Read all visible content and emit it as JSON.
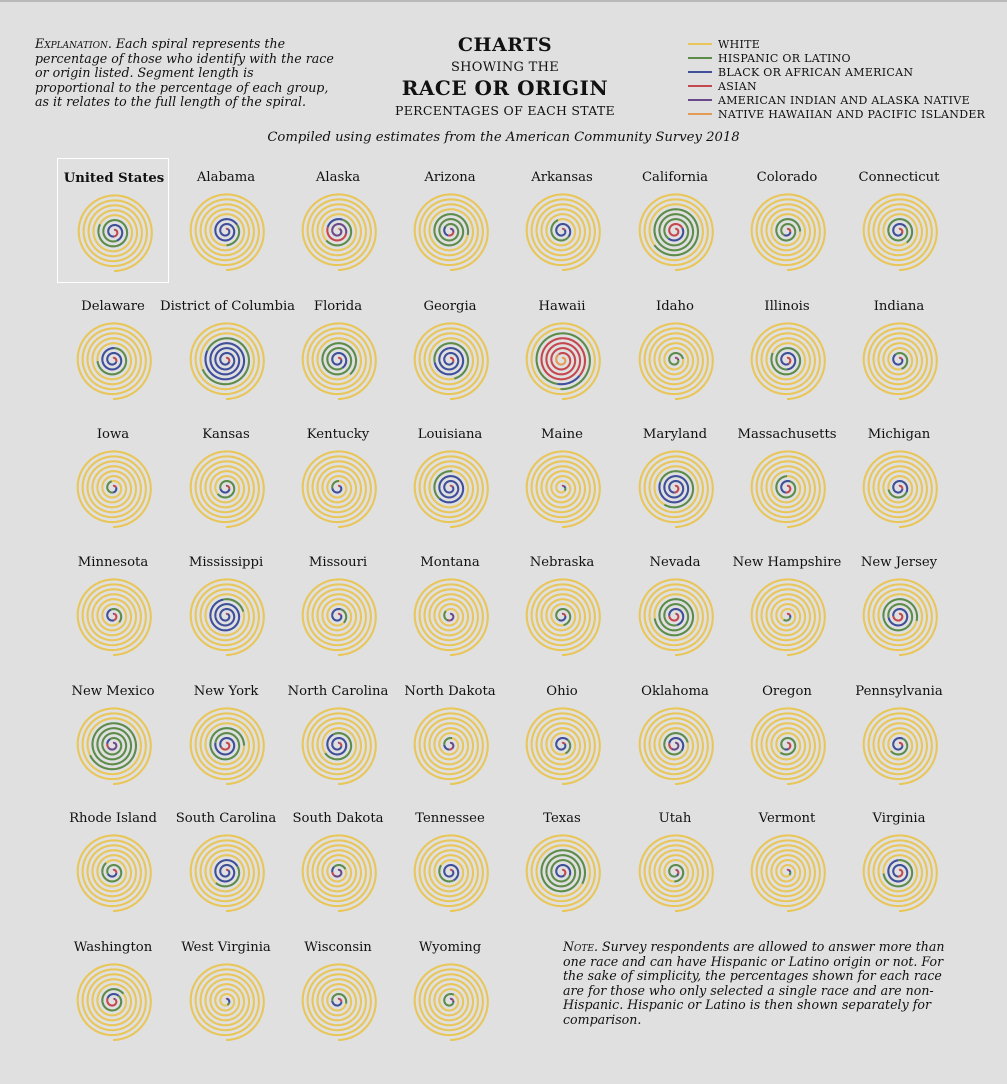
{
  "header": {
    "explanation_lead": "Explanation.",
    "explanation_body": "Each spiral represents the percentage of those who identify with the race or origin listed. Segment length is proportional to the percentage of each group, as it relates to the full length of the spiral.",
    "title_line1": "CHARTS",
    "title_line2": "SHOWING THE",
    "title_line3": "RACE OR ORIGIN",
    "title_line4": "PERCENTAGES OF EACH STATE",
    "subtitle": "Compiled using estimates from the American Community Survey 2018"
  },
  "legend": [
    {
      "label": "WHITE",
      "color": "#e8c65a"
    },
    {
      "label": "HISPANIC OR LATINO",
      "color": "#5d8c4a"
    },
    {
      "label": "BLACK OR AFRICAN AMERICAN",
      "color": "#3f4f9a"
    },
    {
      "label": "ASIAN",
      "color": "#c5474f"
    },
    {
      "label": "AMERICAN INDIAN AND ALASKA NATIVE",
      "color": "#6a4a8a"
    },
    {
      "label": "NATIVE HAWAIIAN AND PACIFIC ISLANDER",
      "color": "#e39a55"
    }
  ],
  "note": {
    "lead": "Note.",
    "body": "Survey respondents are allowed to answer more than one race and can have Hispanic or Latino origin or not. For the sake of simplicity, the percentages shown for each race are for those who only selected a single race and are non-Hispanic. Hispanic or Latino is then shown separately for comparison."
  },
  "chart_data": {
    "type": "spiral",
    "spiral_order": [
      "NATIVE HAWAIIAN AND PACIFIC ISLANDER",
      "AMERICAN INDIAN AND ALASKA NATIVE",
      "ASIAN",
      "BLACK OR AFRICAN AMERICAN",
      "HISPANIC OR LATINO",
      "WHITE"
    ],
    "series_order_from_center": [
      "nhpi",
      "aian",
      "asian",
      "black",
      "hispanic",
      "white"
    ],
    "units": "percent",
    "highlighted": "United States",
    "regions": [
      {
        "name": "United States",
        "white": 60.7,
        "hispanic": 18.0,
        "black": 12.3,
        "asian": 5.6,
        "aian": 0.7,
        "nhpi": 0.2
      },
      {
        "name": "Alabama",
        "white": 65.4,
        "hispanic": 4.3,
        "black": 26.5,
        "asian": 1.3,
        "aian": 0.5,
        "nhpi": 0.0
      },
      {
        "name": "Alaska",
        "white": 60.1,
        "hispanic": 7.2,
        "black": 3.1,
        "asian": 6.3,
        "aian": 14.8,
        "nhpi": 1.3
      },
      {
        "name": "Arizona",
        "white": 54.9,
        "hispanic": 31.4,
        "black": 4.1,
        "asian": 3.2,
        "aian": 3.9,
        "nhpi": 0.2
      },
      {
        "name": "Arkansas",
        "white": 72.2,
        "hispanic": 7.6,
        "black": 15.3,
        "asian": 1.5,
        "aian": 0.6,
        "nhpi": 0.3
      },
      {
        "name": "California",
        "white": 36.8,
        "hispanic": 39.3,
        "black": 5.5,
        "asian": 14.6,
        "aian": 0.4,
        "nhpi": 0.4
      },
      {
        "name": "Colorado",
        "white": 67.9,
        "hispanic": 21.5,
        "black": 3.9,
        "asian": 3.1,
        "aian": 0.6,
        "nhpi": 0.1
      },
      {
        "name": "Connecticut",
        "white": 66.0,
        "hispanic": 16.1,
        "black": 10.4,
        "asian": 4.5,
        "aian": 0.2,
        "nhpi": 0.0
      },
      {
        "name": "Delaware",
        "white": 61.7,
        "hispanic": 9.3,
        "black": 21.9,
        "asian": 4.0,
        "aian": 0.3,
        "nhpi": 0.0
      },
      {
        "name": "District of Columbia",
        "white": 36.6,
        "hispanic": 11.3,
        "black": 45.5,
        "asian": 4.0,
        "aian": 0.2,
        "nhpi": 0.1
      },
      {
        "name": "Florida",
        "white": 53.5,
        "hispanic": 25.6,
        "black": 15.5,
        "asian": 2.7,
        "aian": 0.2,
        "nhpi": 0.1
      },
      {
        "name": "Georgia",
        "white": 52.4,
        "hispanic": 9.6,
        "black": 31.0,
        "asian": 4.1,
        "aian": 0.2,
        "nhpi": 0.1
      },
      {
        "name": "Hawaii",
        "white": 21.8,
        "hispanic": 10.7,
        "black": 1.8,
        "asian": 37.6,
        "aian": 0.1,
        "nhpi": 10.1
      },
      {
        "name": "Idaho",
        "white": 82.0,
        "hispanic": 12.8,
        "black": 0.6,
        "asian": 1.3,
        "aian": 1.2,
        "nhpi": 0.2
      },
      {
        "name": "Illinois",
        "white": 61.1,
        "hispanic": 17.3,
        "black": 14.0,
        "asian": 5.5,
        "aian": 0.1,
        "nhpi": 0.0
      },
      {
        "name": "Indiana",
        "white": 78.9,
        "hispanic": 7.1,
        "black": 9.4,
        "asian": 2.3,
        "aian": 0.2,
        "nhpi": 0.0
      },
      {
        "name": "Iowa",
        "white": 85.3,
        "hispanic": 6.2,
        "black": 3.6,
        "asian": 2.5,
        "aian": 0.3,
        "nhpi": 0.1
      },
      {
        "name": "Kansas",
        "white": 75.7,
        "hispanic": 12.0,
        "black": 5.6,
        "asian": 2.9,
        "aian": 0.8,
        "nhpi": 0.1
      },
      {
        "name": "Kentucky",
        "white": 84.6,
        "hispanic": 3.7,
        "black": 7.9,
        "asian": 1.5,
        "aian": 0.2,
        "nhpi": 0.1
      },
      {
        "name": "Louisiana",
        "white": 58.5,
        "hispanic": 5.2,
        "black": 32.0,
        "asian": 1.7,
        "aian": 0.6,
        "nhpi": 0.0
      },
      {
        "name": "Maine",
        "white": 93.0,
        "hispanic": 1.7,
        "black": 1.4,
        "asian": 1.2,
        "aian": 0.6,
        "nhpi": 0.0
      },
      {
        "name": "Maryland",
        "white": 50.5,
        "hispanic": 10.1,
        "black": 29.7,
        "asian": 6.4,
        "aian": 0.2,
        "nhpi": 0.0
      },
      {
        "name": "Massachusetts",
        "white": 71.4,
        "hispanic": 12.0,
        "black": 7.0,
        "asian": 6.9,
        "aian": 0.1,
        "nhpi": 0.0
      },
      {
        "name": "Michigan",
        "white": 74.9,
        "hispanic": 5.1,
        "black": 13.6,
        "asian": 3.2,
        "aian": 0.5,
        "nhpi": 0.0
      },
      {
        "name": "Minnesota",
        "white": 79.1,
        "hispanic": 5.5,
        "black": 6.3,
        "asian": 5.0,
        "aian": 1.0,
        "nhpi": 0.0
      },
      {
        "name": "Mississippi",
        "white": 56.5,
        "hispanic": 3.1,
        "black": 37.7,
        "asian": 1.0,
        "aian": 0.5,
        "nhpi": 0.0
      },
      {
        "name": "Missouri",
        "white": 79.3,
        "hispanic": 4.2,
        "black": 11.4,
        "asian": 2.0,
        "aian": 0.3,
        "nhpi": 0.1
      },
      {
        "name": "Montana",
        "white": 85.8,
        "hispanic": 3.9,
        "black": 0.5,
        "asian": 0.8,
        "aian": 6.3,
        "nhpi": 0.1
      },
      {
        "name": "Nebraska",
        "white": 78.5,
        "hispanic": 11.2,
        "black": 4.7,
        "asian": 2.4,
        "aian": 0.8,
        "nhpi": 0.1
      },
      {
        "name": "Nevada",
        "white": 48.2,
        "hispanic": 29.0,
        "black": 9.0,
        "asian": 8.1,
        "aian": 0.9,
        "nhpi": 0.7
      },
      {
        "name": "New Hampshire",
        "white": 90.0,
        "hispanic": 3.9,
        "black": 1.4,
        "asian": 2.7,
        "aian": 0.1,
        "nhpi": 0.0
      },
      {
        "name": "New Jersey",
        "white": 54.9,
        "hispanic": 20.4,
        "black": 12.8,
        "asian": 9.7,
        "aian": 0.1,
        "nhpi": 0.0
      },
      {
        "name": "New Mexico",
        "white": 36.8,
        "hispanic": 49.1,
        "black": 1.8,
        "asian": 1.5,
        "aian": 8.7,
        "nhpi": 0.1
      },
      {
        "name": "New York",
        "white": 55.3,
        "hispanic": 19.2,
        "black": 14.3,
        "asian": 8.6,
        "aian": 0.3,
        "nhpi": 0.0
      },
      {
        "name": "North Carolina",
        "white": 63.1,
        "hispanic": 9.5,
        "black": 21.1,
        "asian": 2.9,
        "aian": 1.1,
        "nhpi": 0.1
      },
      {
        "name": "North Dakota",
        "white": 83.7,
        "hispanic": 3.8,
        "black": 3.0,
        "asian": 1.5,
        "aian": 5.2,
        "nhpi": 0.1
      },
      {
        "name": "Ohio",
        "white": 78.7,
        "hispanic": 3.9,
        "black": 12.3,
        "asian": 2.3,
        "aian": 0.2,
        "nhpi": 0.0
      },
      {
        "name": "Oklahoma",
        "white": 65.1,
        "hispanic": 10.6,
        "black": 7.0,
        "asian": 2.2,
        "aian": 7.4,
        "nhpi": 0.2
      },
      {
        "name": "Oregon",
        "white": 75.4,
        "hispanic": 13.2,
        "black": 1.8,
        "asian": 4.4,
        "aian": 0.9,
        "nhpi": 0.4
      },
      {
        "name": "Pennsylvania",
        "white": 76.3,
        "hispanic": 7.3,
        "black": 10.6,
        "asian": 3.5,
        "aian": 0.1,
        "nhpi": 0.0
      },
      {
        "name": "Rhode Island",
        "white": 72.6,
        "hispanic": 15.6,
        "black": 5.2,
        "asian": 3.4,
        "aian": 0.4,
        "nhpi": 0.0
      },
      {
        "name": "South Carolina",
        "white": 63.9,
        "hispanic": 5.8,
        "black": 26.5,
        "asian": 1.6,
        "aian": 0.3,
        "nhpi": 0.1
      },
      {
        "name": "South Dakota",
        "white": 81.8,
        "hispanic": 3.9,
        "black": 1.9,
        "asian": 1.4,
        "aian": 8.3,
        "nhpi": 0.0
      },
      {
        "name": "Tennessee",
        "white": 73.7,
        "hispanic": 5.5,
        "black": 16.6,
        "asian": 1.8,
        "aian": 0.2,
        "nhpi": 0.1
      },
      {
        "name": "Texas",
        "white": 41.5,
        "hispanic": 39.6,
        "black": 11.9,
        "asian": 4.9,
        "aian": 0.3,
        "nhpi": 0.1
      },
      {
        "name": "Utah",
        "white": 78.0,
        "hispanic": 14.2,
        "black": 1.1,
        "asian": 2.4,
        "aian": 1.0,
        "nhpi": 1.0
      },
      {
        "name": "Vermont",
        "white": 92.5,
        "hispanic": 1.9,
        "black": 1.2,
        "asian": 1.7,
        "aian": 0.3,
        "nhpi": 0.0
      },
      {
        "name": "Virginia",
        "white": 61.5,
        "hispanic": 9.6,
        "black": 18.8,
        "asian": 6.6,
        "aian": 0.2,
        "nhpi": 0.1
      },
      {
        "name": "Washington",
        "white": 67.5,
        "hispanic": 12.9,
        "black": 3.8,
        "asian": 8.6,
        "aian": 1.2,
        "nhpi": 0.7
      },
      {
        "name": "West Virginia",
        "white": 92.2,
        "hispanic": 1.6,
        "black": 3.4,
        "asian": 0.8,
        "aian": 0.1,
        "nhpi": 0.0
      },
      {
        "name": "Wisconsin",
        "white": 80.9,
        "hispanic": 7.1,
        "black": 6.2,
        "asian": 2.9,
        "aian": 0.8,
        "nhpi": 0.0
      },
      {
        "name": "Wyoming",
        "white": 83.7,
        "hispanic": 10.1,
        "black": 0.9,
        "asian": 0.8,
        "aian": 2.3,
        "nhpi": 0.1
      }
    ]
  }
}
